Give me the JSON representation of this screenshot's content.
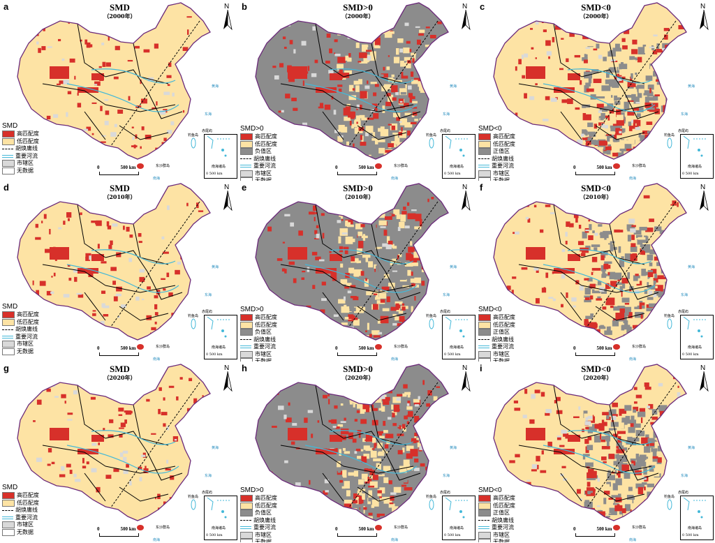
{
  "panels": [
    {
      "letter": "a",
      "title": "SMD",
      "year": "（2000年）",
      "legend_title": "SMD",
      "legend": [
        "高匹配度",
        "低匹配度",
        "胡焕庸线",
        "重要河流",
        "市辖区",
        "无数据"
      ],
      "variant": "both"
    },
    {
      "letter": "b",
      "title": "SMD>0",
      "year": "（2000年）",
      "legend_title": "SMD>0",
      "legend": [
        "高匹配度",
        "低匹配度",
        "负值区",
        "胡焕庸线",
        "重要河流",
        "市辖区",
        "无数据"
      ],
      "variant": "pos"
    },
    {
      "letter": "c",
      "title": "SMD<0",
      "year": "（2000年）",
      "legend_title": "SMD<0",
      "legend": [
        "高匹配度",
        "低匹配度",
        "正值区",
        "胡焕庸线",
        "重要河流",
        "市辖区",
        "无数据"
      ],
      "variant": "neg"
    },
    {
      "letter": "d",
      "title": "SMD",
      "year": "（2010年）",
      "legend_title": "SMD",
      "legend": [
        "高匹配度",
        "低匹配度",
        "胡焕庸线",
        "重要河流",
        "市辖区",
        "无数据"
      ],
      "variant": "both"
    },
    {
      "letter": "e",
      "title": "SMD>0",
      "year": "（2010年）",
      "legend_title": "SMD>0",
      "legend": [
        "高匹配度",
        "低匹配度",
        "负值区",
        "胡焕庸线",
        "重要河流",
        "市辖区",
        "无数据"
      ],
      "variant": "pos"
    },
    {
      "letter": "f",
      "title": "SMD<0",
      "year": "（2010年）",
      "legend_title": "SMD<0",
      "legend": [
        "高匹配度",
        "低匹配度",
        "正值区",
        "胡焕庸线",
        "重要河流",
        "市辖区",
        "无数据"
      ],
      "variant": "neg"
    },
    {
      "letter": "g",
      "title": "SMD",
      "year": "（2020年）",
      "legend_title": "SMD",
      "legend": [
        "高匹配度",
        "低匹配度",
        "胡焕庸线",
        "重要河流",
        "市辖区",
        "无数据"
      ],
      "variant": "both"
    },
    {
      "letter": "h",
      "title": "SMD>0",
      "year": "（2020年）",
      "legend_title": "SMD>0",
      "legend": [
        "高匹配度",
        "低匹配度",
        "负值区",
        "胡焕庸线",
        "重要河流",
        "市辖区",
        "无数据"
      ],
      "variant": "pos"
    },
    {
      "letter": "i",
      "title": "SMD<0",
      "year": "（2020年）",
      "legend_title": "SMD<0",
      "legend": [
        "高匹配度",
        "低匹配度",
        "正值区",
        "胡焕庸线",
        "重要河流",
        "市辖区",
        "无数据"
      ],
      "variant": "neg"
    }
  ],
  "common": {
    "north": "N",
    "scale_zero": "0",
    "scale_label": "500 km",
    "inset_scale": "0  500 km",
    "sea_yellow": "黄海",
    "sea_east": "东海",
    "sea_south": "南海",
    "inset_label": "南海诸岛",
    "island_label": "东沙群岛",
    "diaoyu_label": "钓鱼岛",
    "chiwei_label": "赤尾屿"
  },
  "colors": {
    "high": "#d7302a",
    "low": "#fde3a4",
    "other": "#8c8c8c",
    "district": "#d9d9d9",
    "nodata": "#ffffff",
    "river": "#43b8d8",
    "border": "#6b2a7a"
  }
}
